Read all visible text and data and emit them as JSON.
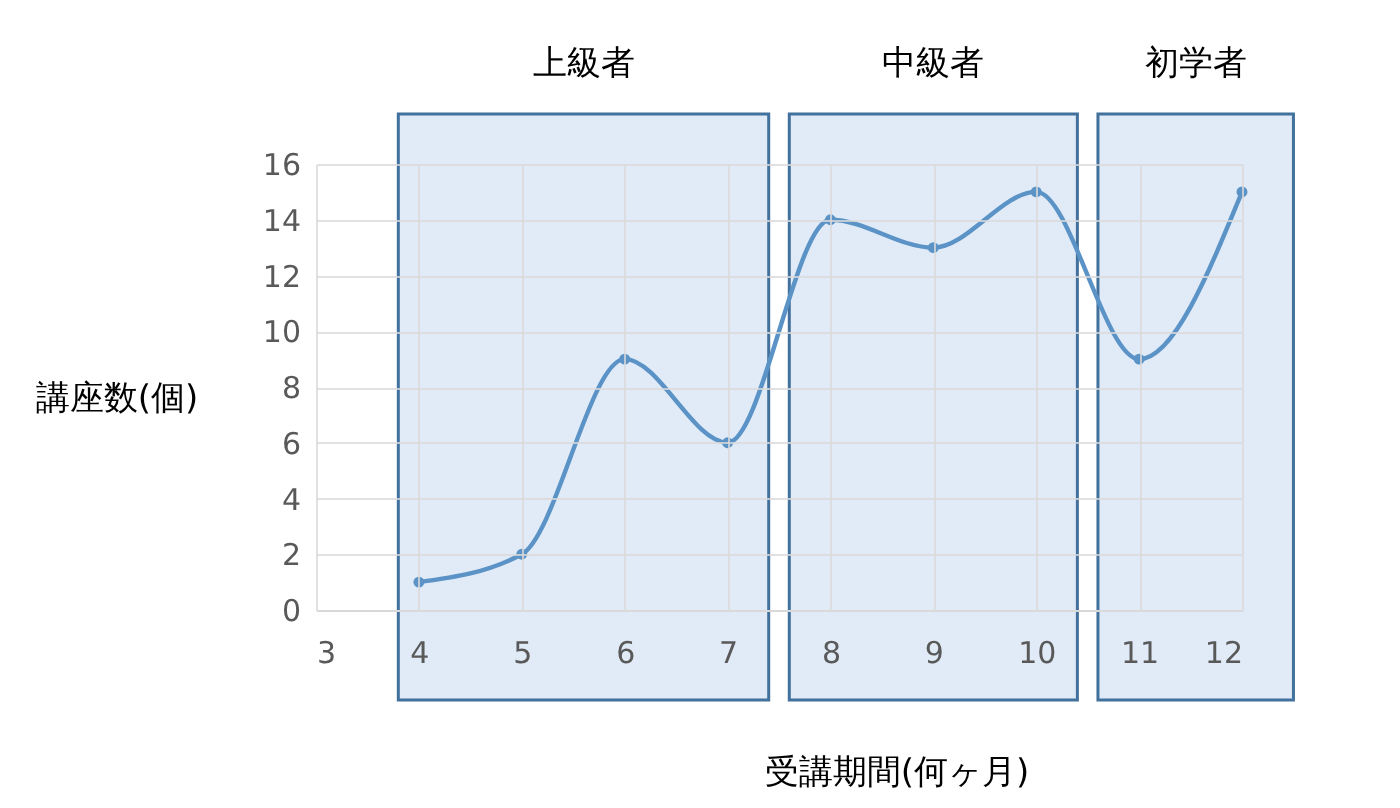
{
  "chart_data": {
    "type": "line",
    "xlabel": "受講期間(何ヶ月)",
    "ylabel": "講座数(個)",
    "x": [
      4,
      5,
      6,
      7,
      8,
      9,
      10,
      11,
      12
    ],
    "series": [
      {
        "color": "#5b93c7",
        "values": [
          1,
          2,
          9,
          6,
          14,
          13,
          15,
          9,
          15
        ]
      }
    ],
    "xlim": [
      3,
      12
    ],
    "xticks": [
      3,
      4,
      5,
      6,
      7,
      8,
      9,
      10,
      11,
      12
    ],
    "ylim": [
      0,
      16
    ],
    "yticks": [
      0,
      2,
      4,
      6,
      8,
      10,
      12,
      14,
      16
    ],
    "bands": [
      {
        "axis": "x",
        "from": 3.8,
        "to": 7.4,
        "label": "上級者",
        "color": "#dde9f6"
      },
      {
        "axis": "x",
        "from": 7.6,
        "to": 10.4,
        "label": "中級者",
        "color": "#dde9f6"
      },
      {
        "axis": "x",
        "from": 10.6,
        "to": 12.5,
        "label": "初学者",
        "color": "#dde9f6"
      }
    ],
    "grid": true,
    "marker": "circle",
    "line_style": "solid"
  }
}
